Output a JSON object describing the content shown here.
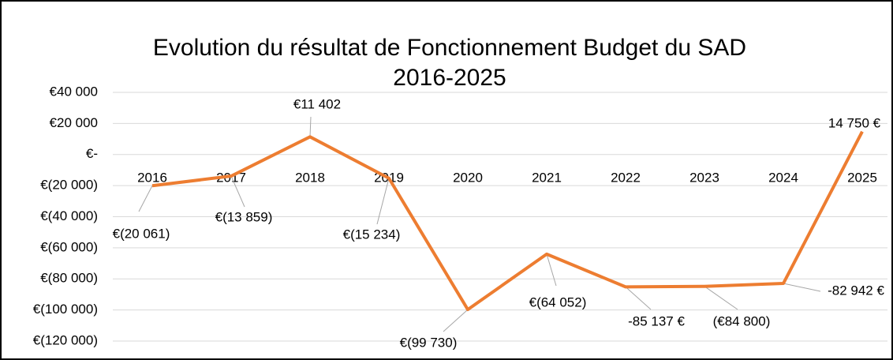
{
  "chart_data": {
    "type": "line",
    "title": "Evolution du résultat de Fonctionnement Budget du SAD",
    "subtitle": "2016-2025",
    "categories": [
      "2016",
      "2017",
      "2018",
      "2019",
      "2020",
      "2021",
      "2022",
      "2023",
      "2024",
      "2025"
    ],
    "series": [
      {
        "name": "Résultat",
        "color": "#ed7d31",
        "values": [
          -20061,
          -13859,
          11402,
          -15234,
          -99730,
          -64052,
          -85137,
          -84800,
          -82942,
          14750
        ],
        "value_labels": [
          "€(20 061)",
          "€(13 859)",
          "€11 402",
          "€(15 234)",
          "€(99 730)",
          "€(64 052)",
          "-85 137 €",
          "(€84 800)",
          "-82 942 €",
          "14 750 €"
        ]
      }
    ],
    "ylim": [
      -120000,
      40000
    ],
    "yticks": [
      {
        "value": -120000,
        "label": "€(120 000)"
      },
      {
        "value": -100000,
        "label": "€(100 000)"
      },
      {
        "value": -80000,
        "label": "€(80 000)"
      },
      {
        "value": -60000,
        "label": "€(60 000)"
      },
      {
        "value": -40000,
        "label": "€(40 000)"
      },
      {
        "value": -20000,
        "label": "€(20 000)"
      },
      {
        "value": 0,
        "label": "€-"
      },
      {
        "value": 20000,
        "label": "€20 000"
      },
      {
        "value": 40000,
        "label": "€40 000"
      }
    ],
    "grid": true
  }
}
